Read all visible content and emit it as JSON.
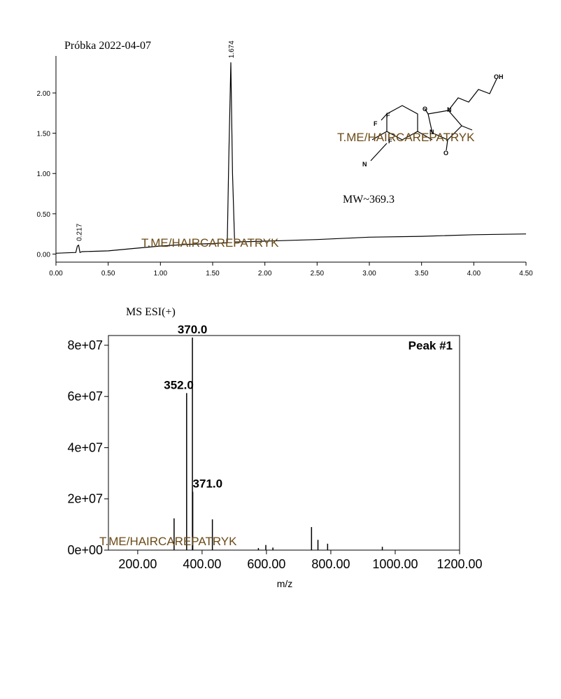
{
  "chart_data": [
    {
      "type": "line",
      "title": "Próbka 2022-04-07",
      "color": "#000000",
      "x": [
        0,
        0.1,
        0.19,
        0.205,
        0.217,
        0.23,
        0.25,
        0.5,
        0.75,
        1.0,
        1.25,
        1.5,
        1.64,
        1.655,
        1.674,
        1.69,
        1.71,
        2.0,
        2.5,
        3.0,
        3.5,
        4.0,
        4.5
      ],
      "values": [
        0.01,
        0.015,
        0.02,
        0.1,
        0.11,
        0.02,
        0.03,
        0.04,
        0.07,
        0.1,
        0.12,
        0.13,
        0.14,
        1.2,
        2.38,
        1.0,
        0.15,
        0.16,
        0.18,
        0.21,
        0.22,
        0.24,
        0.25
      ],
      "peak_labels": [
        0.217,
        1.674
      ],
      "xlim": [
        0,
        4.5
      ],
      "ylim": [
        -0.1,
        2.46
      ],
      "xticks": [
        {
          "value": 0,
          "label": "0.00"
        },
        {
          "value": 0.5,
          "label": "0.50"
        },
        {
          "value": 1,
          "label": "1.00"
        },
        {
          "value": 1.5,
          "label": "1.50"
        },
        {
          "value": 2,
          "label": "2.00"
        },
        {
          "value": 2.5,
          "label": "2.50"
        },
        {
          "value": 3,
          "label": "3.00"
        },
        {
          "value": 3.5,
          "label": "3.50"
        },
        {
          "value": 4,
          "label": "4.00"
        },
        {
          "value": 4.5,
          "label": "4.50"
        }
      ],
      "yticks": [
        {
          "value": 0,
          "label": "0.00"
        },
        {
          "value": 0.5,
          "label": "0.50"
        },
        {
          "value": 1,
          "label": "1.00"
        },
        {
          "value": 1.5,
          "label": "1.50"
        },
        {
          "value": 2,
          "label": "2.00"
        }
      ],
      "annotations": [
        "T.ME/HAIRCAREPATRYK",
        "T.ME/HAIRCAREPATRYK",
        "MW~369.3"
      ],
      "structure_labels": [
        "OH",
        "F",
        "F",
        "F",
        "O",
        "N",
        "N",
        "O",
        "N"
      ]
    },
    {
      "type": "bar",
      "title": "MS ESI(+)",
      "legend_text": "Peak #1",
      "x_label": "m/z",
      "color": "#000000",
      "x": [
        313,
        352,
        370,
        371,
        432,
        575,
        598,
        620,
        740,
        760,
        790,
        960
      ],
      "values": [
        12400000,
        61300000,
        83000000,
        22800000,
        12000000,
        800000,
        2000000,
        1000000,
        9000000,
        4000000,
        2500000,
        1300000
      ],
      "peak_labels": [
        {
          "value": 352,
          "label": "352.0"
        },
        {
          "value": 370,
          "label": "370.0"
        },
        {
          "value": 371,
          "label": "371.0"
        }
      ],
      "xlim": [
        109,
        1200
      ],
      "ylim": [
        0,
        83800000
      ],
      "xticks": [
        {
          "value": 200,
          "label": "200.00"
        },
        {
          "value": 400,
          "label": "400.00"
        },
        {
          "value": 600,
          "label": "600.00"
        },
        {
          "value": 800,
          "label": "800.00"
        },
        {
          "value": 1000,
          "label": "1000.00"
        },
        {
          "value": 1200,
          "label": "1200.00"
        }
      ],
      "yticks": [
        {
          "value": 0,
          "label": "0e+00"
        },
        {
          "value": 20000000,
          "label": "2e+07"
        },
        {
          "value": 40000000,
          "label": "4e+07"
        },
        {
          "value": 60000000,
          "label": "6e+07"
        },
        {
          "value": 80000000,
          "label": "8e+07"
        }
      ],
      "annotations": [
        "T.ME/HAIRCAREPATRYK"
      ]
    }
  ]
}
